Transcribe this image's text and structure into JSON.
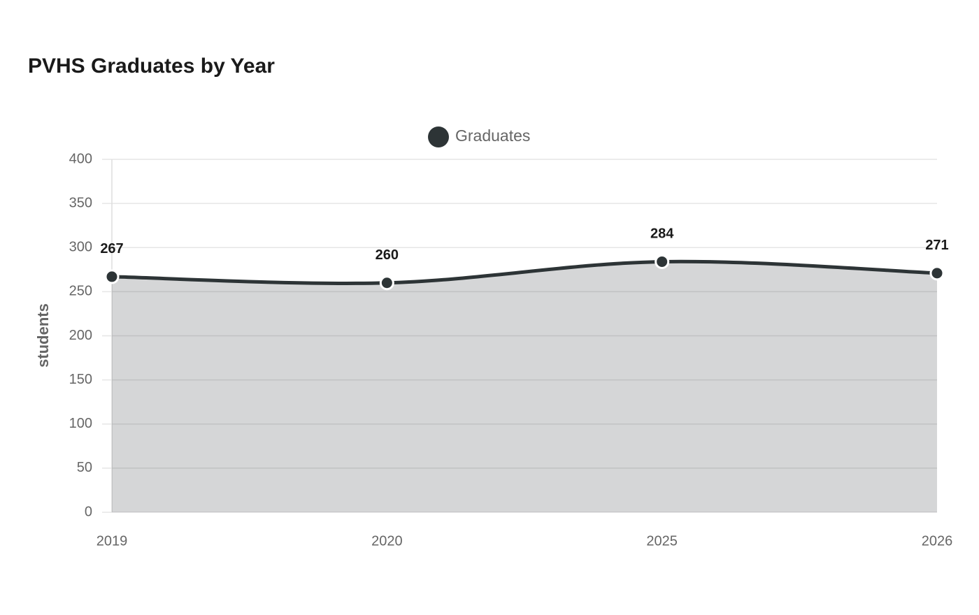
{
  "chart_data": {
    "type": "area",
    "title": "PVHS Graduates by Year",
    "categories": [
      "2019",
      "2020",
      "2025",
      "2026"
    ],
    "series": [
      {
        "name": "Graduates",
        "color": "#2d3436",
        "values": [
          267,
          260,
          284,
          271
        ]
      }
    ],
    "y_label": "students",
    "ylim": [
      0,
      400
    ],
    "yticks": [
      0,
      50,
      100,
      150,
      200,
      250,
      300,
      350,
      400
    ],
    "grid": true,
    "legend": "top",
    "smooth": true,
    "data_labels": true
  }
}
